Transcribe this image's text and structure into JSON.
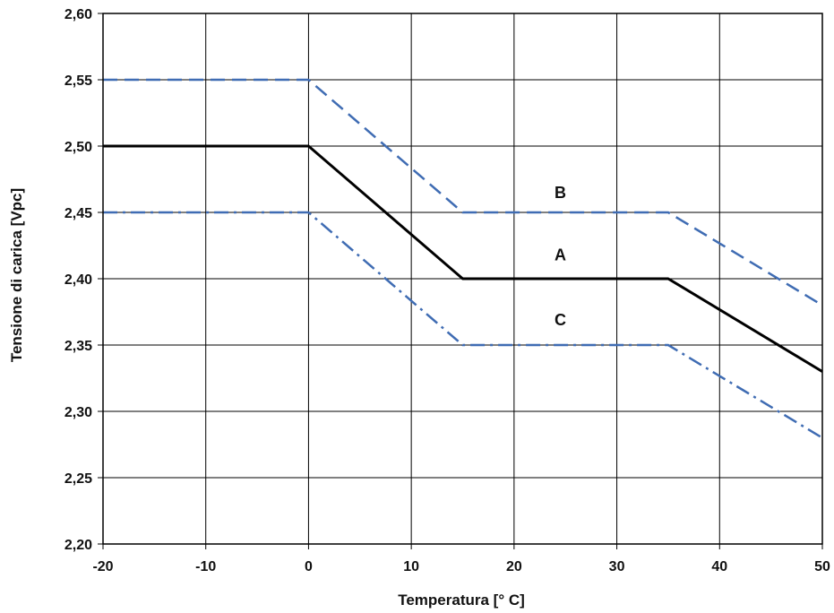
{
  "chart_data": {
    "type": "line",
    "title": "",
    "xlabel": "Temperatura [° C]",
    "ylabel": "Tensione di carica [Vpc]",
    "xlim": [
      -20,
      50
    ],
    "ylim": [
      2.2,
      2.6
    ],
    "x_ticks": [
      "-20",
      "-10",
      "0",
      "10",
      "20",
      "30",
      "40",
      "50"
    ],
    "y_ticks": [
      "2,20",
      "2,25",
      "2,30",
      "2,35",
      "2,40",
      "2,45",
      "2,50",
      "2,55",
      "2,60"
    ],
    "grid": true,
    "series": [
      {
        "name": "A",
        "color": "#000000",
        "style": "solid",
        "x": [
          -20,
          0,
          15,
          35,
          50
        ],
        "y": [
          2.5,
          2.5,
          2.4,
          2.4,
          2.33
        ],
        "label_at": [
          24.5,
          2.418
        ]
      },
      {
        "name": "B",
        "color": "#3f6cb3",
        "style": "dashed",
        "x": [
          -20,
          0,
          15,
          35,
          50
        ],
        "y": [
          2.55,
          2.55,
          2.45,
          2.45,
          2.38
        ],
        "label_at": [
          24.5,
          2.465
        ]
      },
      {
        "name": "C",
        "color": "#3f6cb3",
        "style": "dash-dot",
        "x": [
          -20,
          0,
          15,
          35,
          50
        ],
        "y": [
          2.45,
          2.45,
          2.35,
          2.35,
          2.28
        ],
        "label_at": [
          24.5,
          2.369
        ]
      }
    ]
  }
}
